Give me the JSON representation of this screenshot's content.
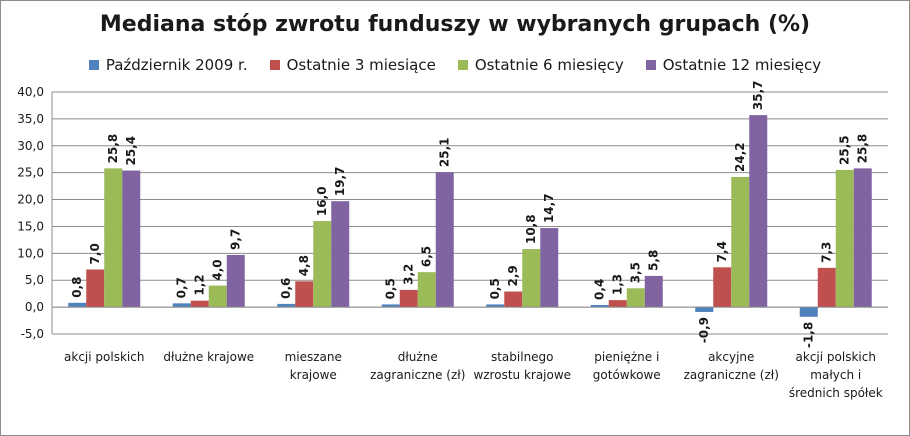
{
  "chart_data": {
    "type": "bar",
    "title": "Mediana stóp zwrotu funduszy w wybranych grupach (%)",
    "xlabel": "",
    "ylabel": "",
    "ylim": [
      -5,
      40
    ],
    "yticks": [
      -5,
      0,
      5,
      10,
      15,
      20,
      25,
      30,
      35,
      40
    ],
    "ytick_labels": [
      "-5,0",
      "0,0",
      "5,0",
      "10,0",
      "15,0",
      "20,0",
      "25,0",
      "30,0",
      "35,0",
      "40,0"
    ],
    "grid": true,
    "legend_position": "top",
    "categories": [
      [
        "akcji polskich"
      ],
      [
        "dłużne krajowe"
      ],
      [
        "mieszane",
        "krajowe"
      ],
      [
        "dłużne",
        "zagraniczne (zł)"
      ],
      [
        "stabilnego",
        "wzrostu krajowe"
      ],
      [
        "pieniężne i",
        "gotówkowe"
      ],
      [
        "akcyjne",
        "zagraniczne (zł)"
      ],
      [
        "akcji polskich",
        "małych i",
        "średnich spółek"
      ]
    ],
    "series": [
      {
        "name": "Październik 2009 r.",
        "color": "#4f81bd",
        "values": [
          0.8,
          0.7,
          0.6,
          0.5,
          0.5,
          0.4,
          -0.9,
          -1.8
        ],
        "labels": [
          "0,8",
          "0,7",
          "0,6",
          "0,5",
          "0,5",
          "0,4",
          "-0,9",
          "-1,8"
        ]
      },
      {
        "name": "Ostatnie 3 miesiące",
        "color": "#c0504d",
        "values": [
          7.0,
          1.2,
          4.8,
          3.2,
          2.9,
          1.3,
          7.4,
          7.3
        ],
        "labels": [
          "7,0",
          "1,2",
          "4,8",
          "3,2",
          "2,9",
          "1,3",
          "7,4",
          "7,3"
        ]
      },
      {
        "name": "Ostatnie 6 miesięcy",
        "color": "#9bbb59",
        "values": [
          25.8,
          4.0,
          16.0,
          6.5,
          10.8,
          3.5,
          24.2,
          25.5
        ],
        "labels": [
          "25,8",
          "4,0",
          "16,0",
          "6,5",
          "10,8",
          "3,5",
          "24,2",
          "25,5"
        ]
      },
      {
        "name": "Ostatnie 12 miesięcy",
        "color": "#8064a2",
        "values": [
          25.4,
          9.7,
          19.7,
          25.1,
          14.7,
          5.8,
          35.7,
          25.8
        ],
        "labels": [
          "25,4",
          "9,7",
          "19,7",
          "25,1",
          "14,7",
          "5,8",
          "35,7",
          "25,8"
        ]
      }
    ]
  }
}
